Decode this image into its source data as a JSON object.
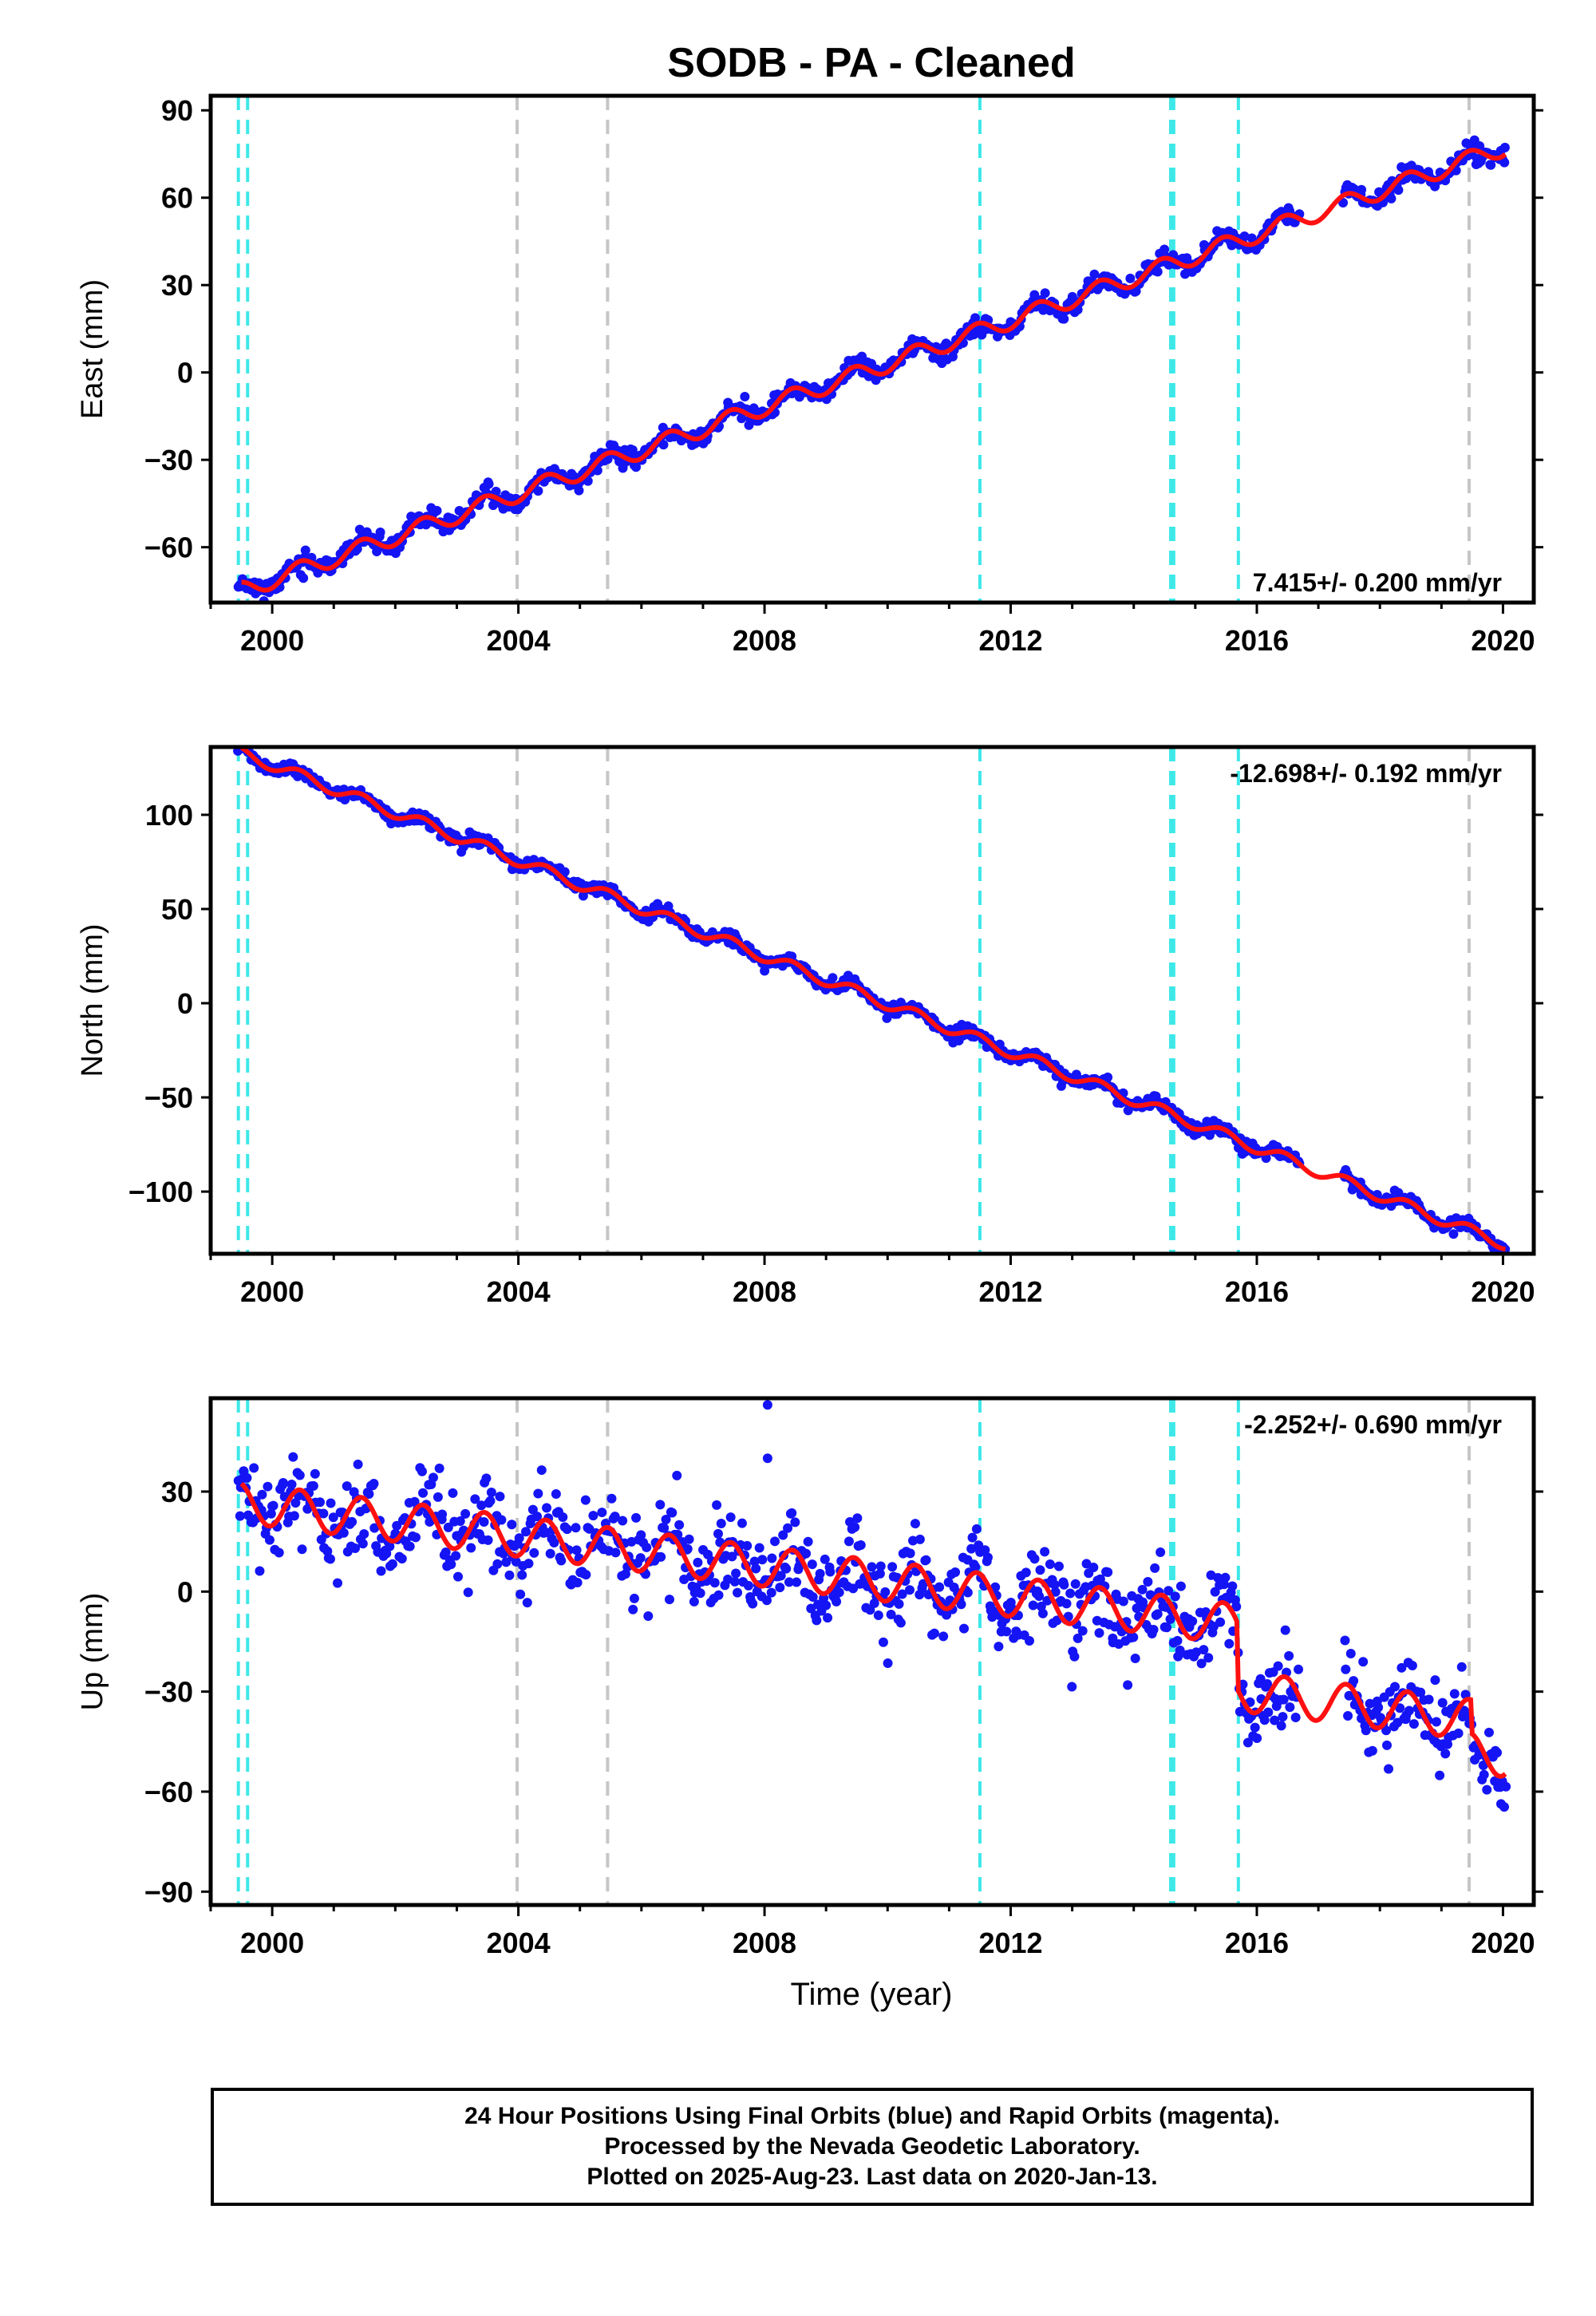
{
  "chart_data": {
    "type": "scatter",
    "title": "SODB  - PA - Cleaned",
    "xlabel": "Time (year)",
    "xlim": [
      1999.0,
      2020.5
    ],
    "xticks": [
      2000,
      2004,
      2008,
      2012,
      2016,
      2020
    ],
    "x_tick_labels": [
      "2000",
      "2004",
      "2008",
      "2012",
      "2016",
      "2020"
    ],
    "grid": false,
    "marker_color": "#1414f5",
    "model_color": "#ff1010",
    "equipment_change_color": "#3ee8e8",
    "other_event_color": "#c6c6c6",
    "equipment_change_years": [
      1999.45,
      1999.6,
      2011.5,
      2014.6,
      2014.65,
      2015.7
    ],
    "other_event_years": [
      2003.98,
      2005.45,
      2019.45
    ],
    "panels": [
      {
        "name": "east",
        "ylabel": "East (mm)",
        "ylim": [
          -79,
          95
        ],
        "yticks": [
          -60,
          -30,
          0,
          30,
          60,
          90
        ],
        "ytick_labels": [
          "−60",
          "−30",
          "0",
          "30",
          "60",
          "90"
        ],
        "rate": "7.415+/- 0.200 mm/yr",
        "rate_position": "bottom-right",
        "slope": 7.415,
        "intercept_2010": 3,
        "annual_amplitude": 3,
        "noise": 1.6,
        "outliers": [],
        "offsets": [],
        "seed": 11
      },
      {
        "name": "north",
        "ylabel": "North (mm)",
        "ylim": [
          -133,
          136
        ],
        "yticks": [
          -100,
          -50,
          0,
          50,
          100
        ],
        "ytick_labels": [
          "−100",
          "−50",
          "0",
          "50",
          "100"
        ],
        "rate": "-12.698+/- 0.192 mm/yr",
        "rate_position": "top-right",
        "slope": -12.698,
        "intercept_2010": -0.5,
        "annual_amplitude": 3,
        "noise": 1.7,
        "outliers": [],
        "offsets": [],
        "seed": 23
      },
      {
        "name": "up",
        "ylabel": "Up (mm)",
        "ylim": [
          -94,
          58
        ],
        "yticks": [
          -90,
          -60,
          -30,
          0,
          30
        ],
        "ytick_labels": [
          "−90",
          "−60",
          "−30",
          "0",
          "30"
        ],
        "rate": "-2.252+/- 0.690 mm/yr",
        "rate_position": "top-right",
        "slope": -2.252,
        "intercept_2010": 3,
        "annual_amplitude": 6,
        "noise": 6.5,
        "outliers": [
          [
            2008.05,
            56
          ],
          [
            2008.05,
            40
          ]
        ],
        "offsets": [
          [
            2015.7,
            -20
          ],
          [
            2019.5,
            -10
          ]
        ],
        "seed": 37
      }
    ],
    "note_lines": [
      "24 Hour Positions Using Final Orbits (blue) and Rapid Orbits (magenta).",
      "Processed by the Nevada Geodetic Laboratory.",
      "Plotted on 2025-Aug-23. Last data on 2020-Jan-13."
    ]
  }
}
